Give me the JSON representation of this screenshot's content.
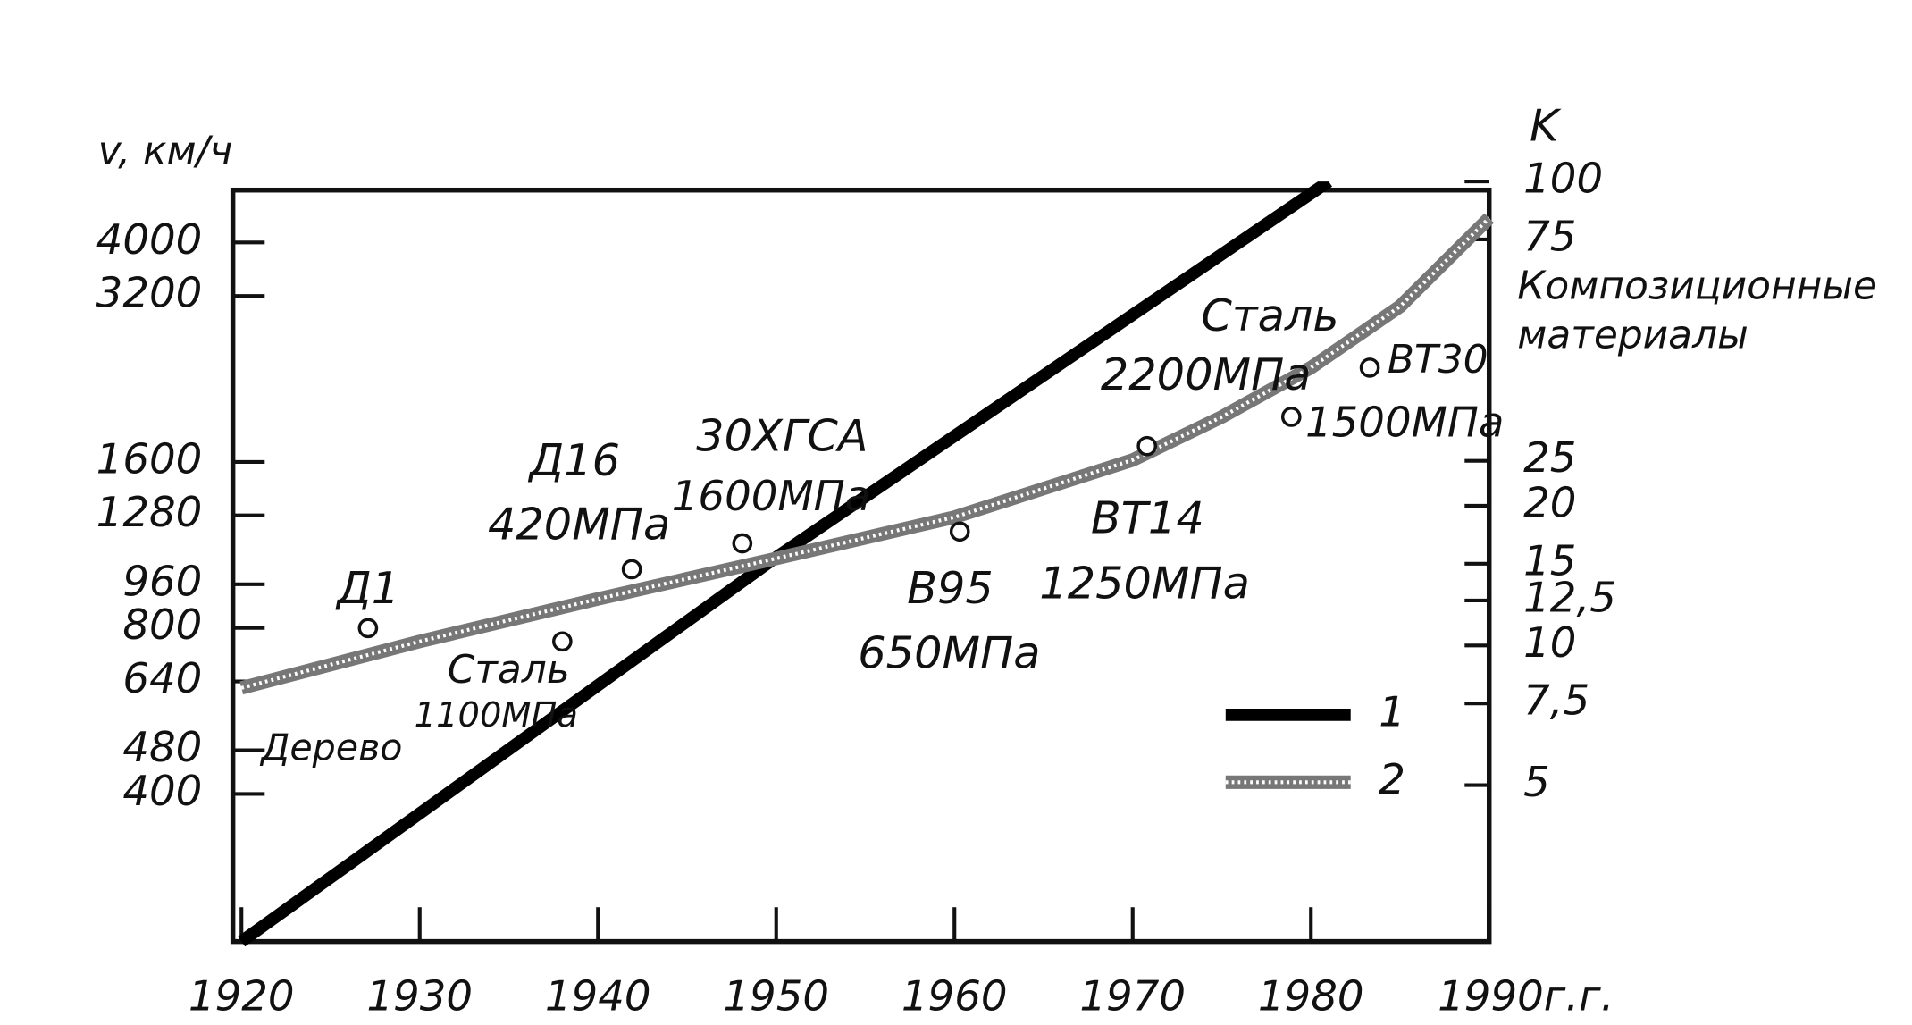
{
  "chart_data": {
    "type": "line",
    "y_label": "v, км/ч",
    "y2_label": "K",
    "xlim": [
      1920,
      1990
    ],
    "xticks": [
      1920,
      1930,
      1940,
      1950,
      1960,
      1970,
      1980,
      {
        "value": 1990,
        "label": "1990г.г."
      }
    ],
    "ylim": [
      216,
      5160
    ],
    "log_y": true,
    "yticks": [
      400,
      480,
      640,
      800,
      960,
      1280,
      1600,
      3200,
      4000
    ],
    "y2lim": [
      2.3,
      100
    ],
    "log_y2": true,
    "y2ticks": [
      5,
      {
        "value": 7.5,
        "label": "7,5"
      },
      10,
      {
        "value": 12.5,
        "label": "12,5"
      },
      15,
      20,
      25,
      75,
      100
    ],
    "series": [
      {
        "name": "1",
        "color": "#000000",
        "x": [
          1920,
          1950,
          1981
        ],
        "values": [
          216,
          1075,
          5160
        ]
      },
      {
        "name": "2",
        "color": "#777777",
        "axis": "y2",
        "x": [
          1920,
          1930,
          1940,
          1950,
          1960,
          1970,
          1975,
          1980,
          1985,
          1990
        ],
        "values": [
          8.1,
          10.2,
          12.6,
          15.4,
          18.9,
          25.1,
          31.1,
          39.7,
          53.8,
          83.4
        ]
      }
    ],
    "points": {
      "axis": "y2",
      "x": [
        1927.1,
        1938.0,
        1941.9,
        1948.1,
        1960.3,
        1970.8,
        1978.9,
        1983.3
      ],
      "values": [
        10.9,
        10.2,
        14.6,
        16.6,
        17.6,
        26.9,
        31.1,
        39.7
      ]
    },
    "annotations": [
      "Д1",
      "Дерево",
      "Сталь",
      "1100МПа",
      "Д16",
      "420МПа",
      "30ХГСА",
      "1600МПа",
      "В95",
      "650МПа",
      "ВТ14",
      "1250МПа",
      "Сталь",
      "2200МПа",
      "ВТ30",
      "1500МПа",
      "Композиционные",
      "материалы"
    ]
  }
}
